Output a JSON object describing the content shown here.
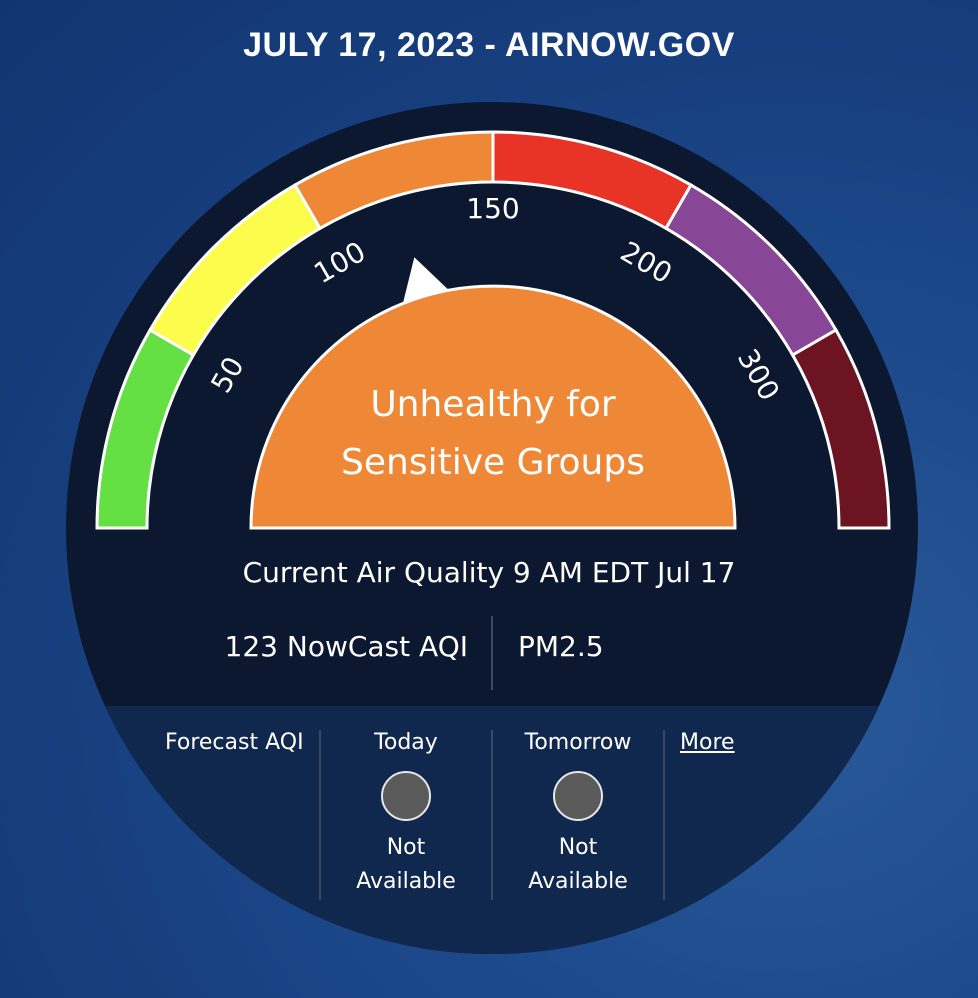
{
  "header": {
    "title": "JULY 17, 2023 - AIRNOW.GOV"
  },
  "gauge": {
    "scale_labels": [
      "50",
      "100",
      "150",
      "200",
      "300"
    ],
    "category": "Unhealthy for Sensitive Groups",
    "category_line1": "Unhealthy for",
    "category_line2": "Sensitive Groups",
    "aqi_value": 123,
    "colors": {
      "good": "#64e045",
      "moderate": "#fcfc4c",
      "usg": "#ee8836",
      "unhealthy": "#e83426",
      "very_unhealthy": "#884796",
      "hazardous": "#6d1422",
      "panel": "#0c1730",
      "footer": "#11284e"
    }
  },
  "current": {
    "heading": "Current Air Quality 9 AM EDT Jul 17",
    "aqi_text": "123 NowCast AQI",
    "pollutant": "PM2.5"
  },
  "forecast": {
    "label": "Forecast AQI",
    "today": {
      "label": "Today",
      "status_line1": "Not",
      "status_line2": "Available"
    },
    "tomorrow": {
      "label": "Tomorrow",
      "status_line1": "Not",
      "status_line2": "Available"
    },
    "more_label": "More"
  }
}
